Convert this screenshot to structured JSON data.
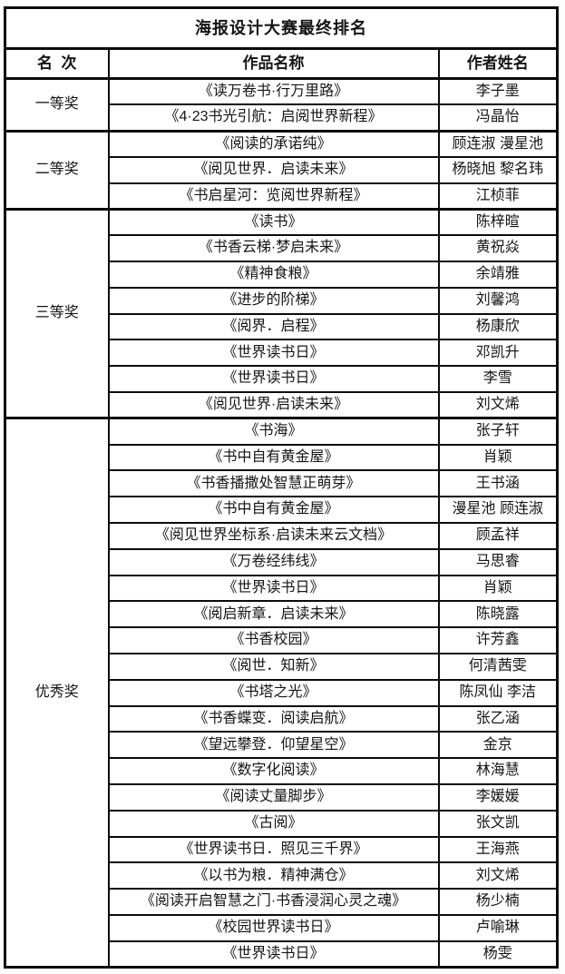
{
  "table": {
    "title": "海报设计大赛最终排名",
    "columns": {
      "rank": "名  次",
      "work": "作品名称",
      "author": "作者姓名"
    },
    "groups": [
      {
        "rank": "一等奖",
        "entries": [
          {
            "title": "《读万卷书·行万里路》",
            "author": "李子墨"
          },
          {
            "title": "《4·23书光引航：启阅世界新程》",
            "author": "冯晶怡"
          }
        ]
      },
      {
        "rank": "二等奖",
        "entries": [
          {
            "title": "《阅读的承诺纯》",
            "author": "顾连淑 漫星池"
          },
          {
            "title": "《阅见世界．启读未来》",
            "author": "杨晓旭 黎名玮"
          },
          {
            "title": "《书启星河：览阅世界新程》",
            "author": "江桢菲"
          }
        ]
      },
      {
        "rank": "三等奖",
        "entries": [
          {
            "title": "《读书》",
            "author": "陈梓暄"
          },
          {
            "title": "《书香云梯·梦启未来》",
            "author": "黄祝焱"
          },
          {
            "title": "《精神食粮》",
            "author": "余靖雅"
          },
          {
            "title": "《进步的阶梯》",
            "author": "刘馨鸿"
          },
          {
            "title": "《阅界．启程》",
            "author": "杨康欣"
          },
          {
            "title": "《世界读书日》",
            "author": "邓凯升"
          },
          {
            "title": "《世界读书日》",
            "author": "李雪"
          },
          {
            "title": "《阅见世界·启读未来》",
            "author": "刘文烯"
          }
        ]
      },
      {
        "rank": "优秀奖",
        "entries": [
          {
            "title": "《书海》",
            "author": "张子轩"
          },
          {
            "title": "《书中自有黄金屋》",
            "author": "肖颖"
          },
          {
            "title": "《书香播撒处智慧正萌芽》",
            "author": "王书涵"
          },
          {
            "title": "《书中自有黄金屋》",
            "author": "漫星池 顾连淑"
          },
          {
            "title": "《阅见世界坐标系·启读未来云文档》",
            "author": "顾孟祥"
          },
          {
            "title": "《万卷经纬线》",
            "author": "马思睿"
          },
          {
            "title": "《世界读书日》",
            "author": "肖颖"
          },
          {
            "title": "《阅启新章．启读未来》",
            "author": "陈晓露"
          },
          {
            "title": "《书香校园》",
            "author": "许芳鑫"
          },
          {
            "title": "《阅世．知新》",
            "author": "何清茜雯"
          },
          {
            "title": "《书塔之光》",
            "author": "陈凤仙 李洁"
          },
          {
            "title": "《书香蝶变．阅读启航》",
            "author": "张乙涵"
          },
          {
            "title": "《望远攀登．仰望星空》",
            "author": "金京"
          },
          {
            "title": "《数字化阅读》",
            "author": "林海慧"
          },
          {
            "title": "《阅读丈量脚步》",
            "author": "李媛媛"
          },
          {
            "title": "《古阅》",
            "author": "张文凯"
          },
          {
            "title": "《世界读书日．照见三千界》",
            "author": "王海燕"
          },
          {
            "title": "《以书为粮．精神满仓》",
            "author": "刘文烯"
          },
          {
            "title": "《阅读开启智慧之门·书香浸润心灵之魂》",
            "author": "杨少楠"
          },
          {
            "title": "《校园世界读书日》",
            "author": "卢喻琳"
          },
          {
            "title": "《世界读书日》",
            "author": "杨雯"
          }
        ]
      }
    ]
  }
}
